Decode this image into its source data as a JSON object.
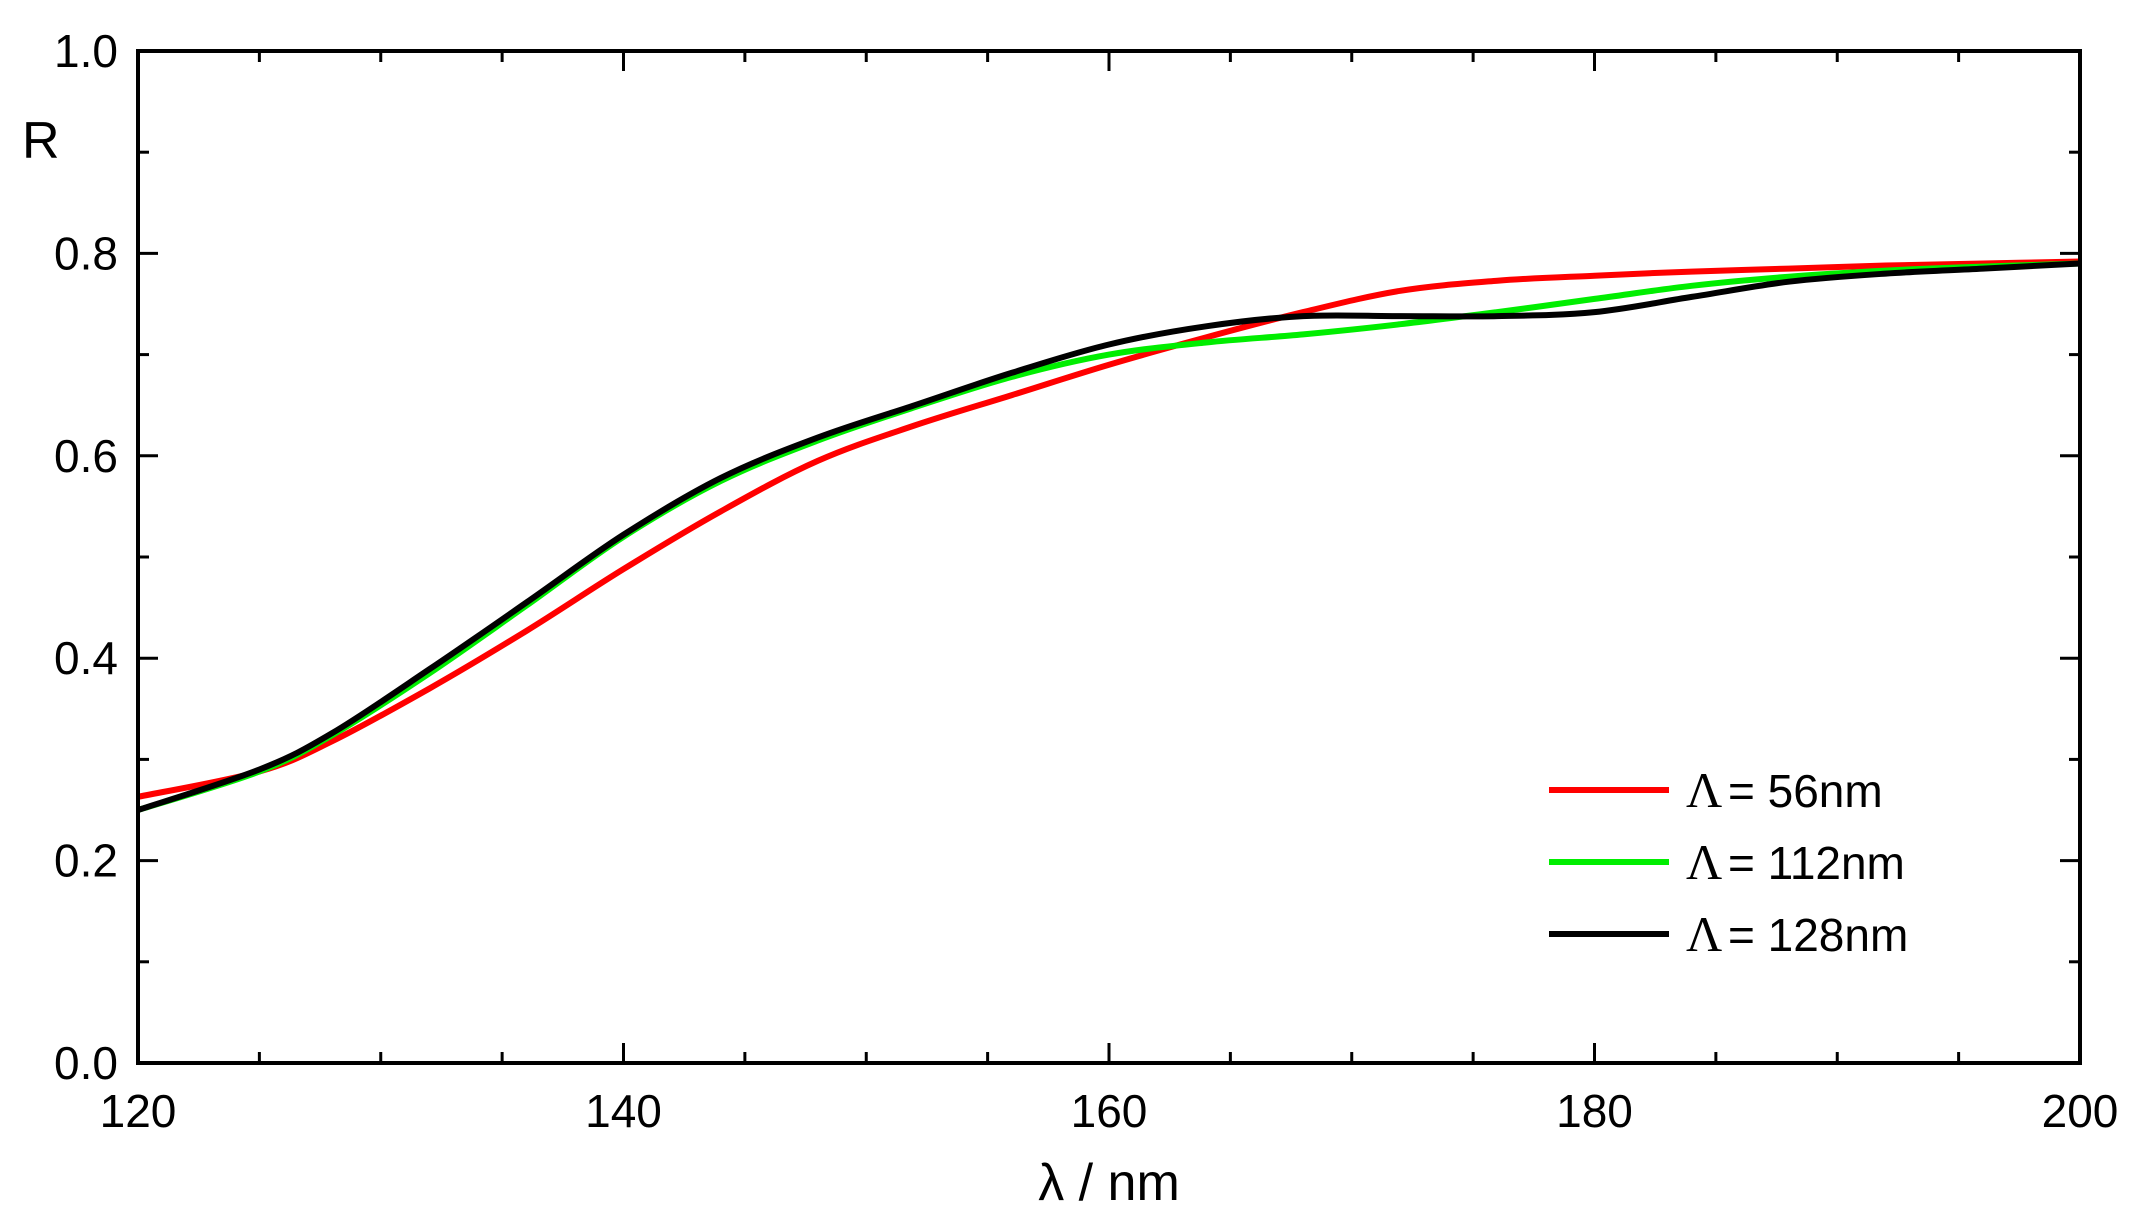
{
  "chart_data": {
    "type": "line",
    "xlabel": "λ / nm",
    "ylabel": "R",
    "xlim": [
      120,
      200
    ],
    "ylim": [
      0.0,
      1.0
    ],
    "x_ticks": [
      "120",
      "140",
      "160",
      "180",
      "200"
    ],
    "y_ticks": [
      "0.0",
      "0.2",
      "0.4",
      "0.6",
      "0.8",
      "1.0"
    ],
    "grid": false,
    "legend_position": "bottom-right",
    "series": [
      {
        "name": "Λ = 56nm",
        "legend_symbol": "Λ",
        "legend_text": "= 56nm",
        "color": "#ff0000",
        "x": [
          120,
          125,
          128,
          132,
          136,
          140,
          144,
          148,
          152,
          156,
          160,
          164,
          168,
          172,
          176,
          180,
          184,
          188,
          192,
          196,
          200
        ],
        "y": [
          0.263,
          0.288,
          0.318,
          0.37,
          0.427,
          0.488,
          0.545,
          0.595,
          0.63,
          0.66,
          0.69,
          0.717,
          0.742,
          0.763,
          0.773,
          0.778,
          0.782,
          0.785,
          0.788,
          0.79,
          0.792
        ]
      },
      {
        "name": "Λ = 112nm",
        "legend_symbol": "Λ",
        "legend_text": "= 112nm",
        "color": "#00ee00",
        "x": [
          120,
          125,
          128,
          132,
          136,
          140,
          144,
          148,
          152,
          156,
          160,
          164,
          168,
          172,
          176,
          180,
          184,
          188,
          192,
          196,
          200
        ],
        "y": [
          0.25,
          0.288,
          0.324,
          0.385,
          0.452,
          0.52,
          0.575,
          0.615,
          0.648,
          0.678,
          0.7,
          0.712,
          0.72,
          0.73,
          0.742,
          0.755,
          0.768,
          0.777,
          0.783,
          0.787,
          0.79
        ]
      },
      {
        "name": "Λ = 128nm",
        "legend_symbol": "Λ",
        "legend_text": "= 128nm",
        "color": "#000000",
        "x": [
          120,
          125,
          128,
          132,
          136,
          140,
          144,
          148,
          152,
          156,
          160,
          164,
          168,
          172,
          176,
          180,
          184,
          188,
          192,
          196,
          200
        ],
        "y": [
          0.25,
          0.29,
          0.326,
          0.389,
          0.455,
          0.522,
          0.578,
          0.618,
          0.65,
          0.682,
          0.71,
          0.728,
          0.738,
          0.738,
          0.738,
          0.742,
          0.757,
          0.772,
          0.78,
          0.785,
          0.79
        ]
      }
    ]
  }
}
